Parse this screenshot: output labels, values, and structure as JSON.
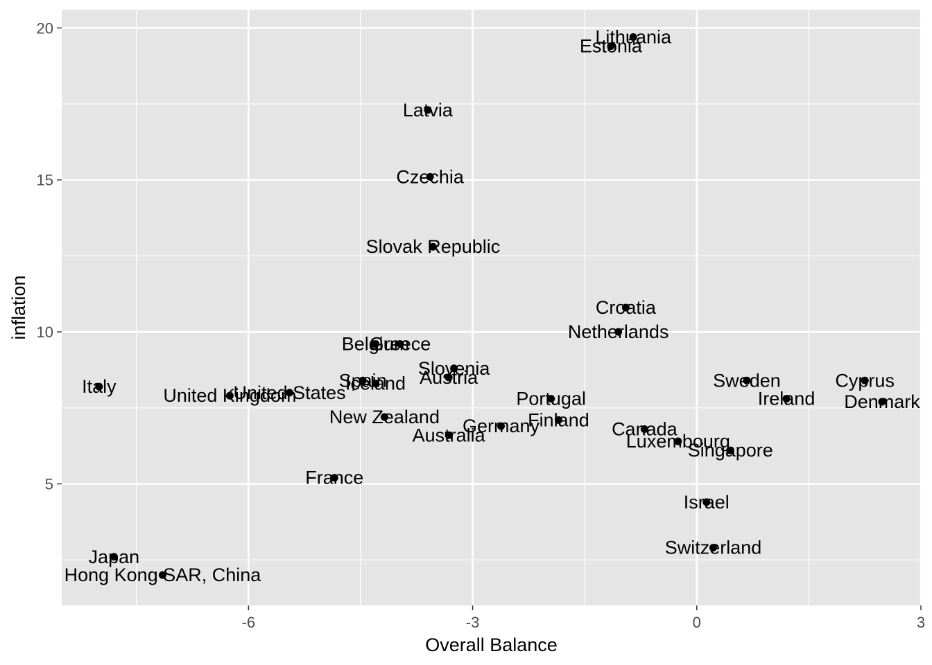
{
  "chart_data": {
    "type": "scatter",
    "title": "",
    "xlabel": "Overall Balance",
    "ylabel": "inflation",
    "xlim": [
      -8.5,
      3.0
    ],
    "ylim": [
      1.0,
      20.6
    ],
    "x_ticks": [
      -6,
      -3,
      0,
      3
    ],
    "y_ticks": [
      5,
      10,
      15,
      20
    ],
    "grid": true,
    "colors": {
      "panel": "#e5e5e5",
      "grid": "#ffffff",
      "point": "#000000"
    },
    "points": [
      {
        "label": "Lithuania",
        "x": -0.85,
        "y": 19.7
      },
      {
        "label": "Estonia",
        "x": -1.15,
        "y": 19.4
      },
      {
        "label": "Latvia",
        "x": -3.6,
        "y": 17.3
      },
      {
        "label": "Czechia",
        "x": -3.57,
        "y": 15.1
      },
      {
        "label": "Slovak Republic",
        "x": -3.53,
        "y": 12.8
      },
      {
        "label": "Croatia",
        "x": -0.95,
        "y": 10.8
      },
      {
        "label": "Netherlands",
        "x": -1.05,
        "y": 10.0
      },
      {
        "label": "Belgium",
        "x": -4.3,
        "y": 9.6
      },
      {
        "label": "Greece",
        "x": -3.97,
        "y": 9.6
      },
      {
        "label": "Slovenia",
        "x": -3.25,
        "y": 8.8
      },
      {
        "label": "Austria",
        "x": -3.32,
        "y": 8.5
      },
      {
        "label": "Spain",
        "x": -4.47,
        "y": 8.4
      },
      {
        "label": "Iceland",
        "x": -4.3,
        "y": 8.3
      },
      {
        "label": "Italy",
        "x": -8.0,
        "y": 8.2
      },
      {
        "label": "United States",
        "x": -5.45,
        "y": 8.0
      },
      {
        "label": "United Kingdom",
        "x": -6.25,
        "y": 7.9
      },
      {
        "label": "Sweden",
        "x": 0.67,
        "y": 8.4
      },
      {
        "label": "Cyprus",
        "x": 2.25,
        "y": 8.4
      },
      {
        "label": "Ireland",
        "x": 1.2,
        "y": 7.8
      },
      {
        "label": "Denmark",
        "x": 2.48,
        "y": 7.7
      },
      {
        "label": "Portugal",
        "x": -1.95,
        "y": 7.8
      },
      {
        "label": "Finland",
        "x": -1.85,
        "y": 7.1
      },
      {
        "label": "New Zealand",
        "x": -4.18,
        "y": 7.2
      },
      {
        "label": "Germany",
        "x": -2.62,
        "y": 6.9
      },
      {
        "label": "Australia",
        "x": -3.32,
        "y": 6.6
      },
      {
        "label": "Canada",
        "x": -0.7,
        "y": 6.8
      },
      {
        "label": "Luxembourg",
        "x": -0.25,
        "y": 6.4
      },
      {
        "label": "Singapore",
        "x": 0.45,
        "y": 6.1
      },
      {
        "label": "France",
        "x": -4.85,
        "y": 5.2
      },
      {
        "label": "Israel",
        "x": 0.13,
        "y": 4.4
      },
      {
        "label": "Switzerland",
        "x": 0.22,
        "y": 2.9
      },
      {
        "label": "Japan",
        "x": -7.8,
        "y": 2.6
      },
      {
        "label": "Hong Kong SAR, China",
        "x": -7.15,
        "y": 2.0
      }
    ]
  }
}
